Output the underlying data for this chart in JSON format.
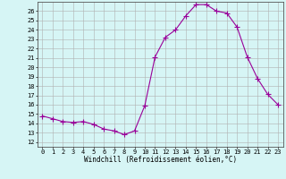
{
  "hours": [
    0,
    1,
    2,
    3,
    4,
    5,
    6,
    7,
    8,
    9,
    10,
    11,
    12,
    13,
    14,
    15,
    16,
    17,
    18,
    19,
    20,
    21,
    22,
    23
  ],
  "values": [
    14.8,
    14.5,
    14.2,
    14.1,
    14.2,
    13.9,
    13.4,
    13.2,
    12.8,
    13.2,
    15.9,
    21.1,
    23.2,
    24.0,
    25.5,
    26.7,
    26.7,
    26.0,
    25.8,
    24.3,
    21.1,
    18.8,
    17.1,
    16.0
  ],
  "line_color": "#990099",
  "marker": "+",
  "marker_size": 4,
  "bg_color": "#d6f5f5",
  "grid_color": "#b0b0b0",
  "xlabel": "Windchill (Refroidissement éolien,°C)",
  "ylabel_ticks": [
    12,
    13,
    14,
    15,
    16,
    17,
    18,
    19,
    20,
    21,
    22,
    23,
    24,
    25,
    26
  ],
  "ylim": [
    11.5,
    27.0
  ],
  "xlim": [
    -0.5,
    23.5
  ],
  "label_fontsize": 5.5,
  "tick_fontsize": 5.0,
  "marker_color": "#990099"
}
